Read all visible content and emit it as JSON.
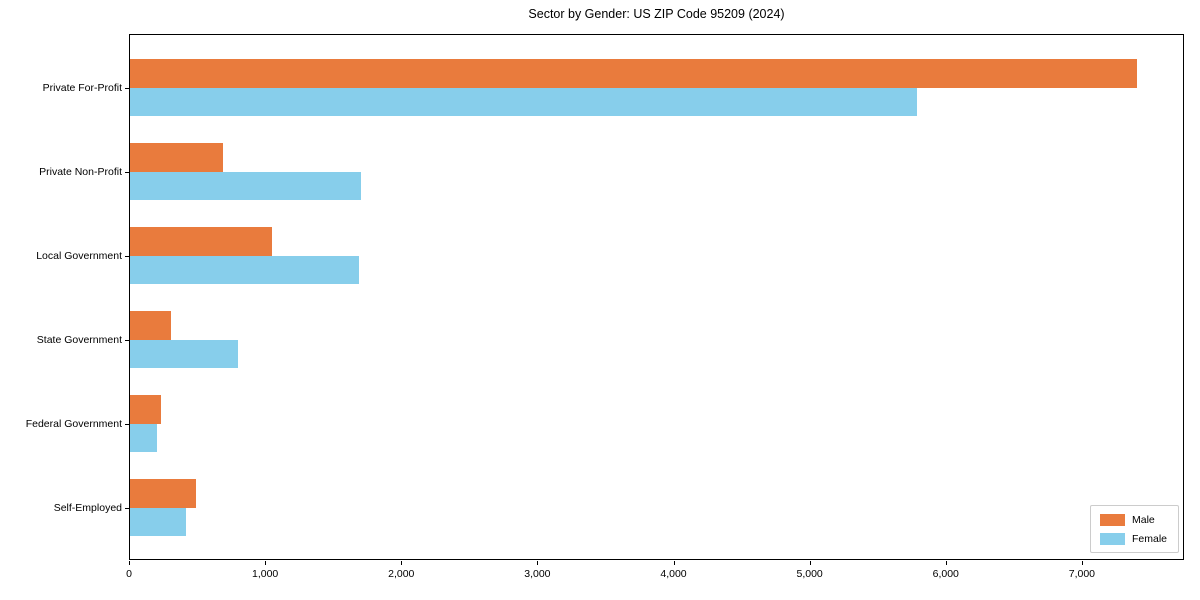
{
  "chart_data": {
    "type": "bar",
    "orientation": "horizontal",
    "title": "Sector by Gender: US ZIP Code 95209 (2024)",
    "categories": [
      "Private For-Profit",
      "Private Non-Profit",
      "Local Government",
      "State Government",
      "Federal Government",
      "Self-Employed"
    ],
    "series": [
      {
        "name": "Male",
        "color": "#E97B3D",
        "values": [
          7400,
          680,
          1040,
          300,
          225,
          485
        ]
      },
      {
        "name": "Female",
        "color": "#87CEEB",
        "values": [
          5780,
          1700,
          1680,
          790,
          195,
          410
        ]
      }
    ],
    "xlabel": "",
    "ylabel": "",
    "xlim": [
      0,
      7750
    ],
    "xticks": {
      "values": [
        0,
        1000,
        2000,
        3000,
        4000,
        5000,
        6000,
        7000
      ],
      "labels": [
        "0",
        "1,000",
        "2,000",
        "3,000",
        "4,000",
        "5,000",
        "6,000",
        "7,000"
      ]
    },
    "grid": false,
    "legend_position": "lower right",
    "spine_color": "#000000",
    "background_color": "#ffffff"
  }
}
